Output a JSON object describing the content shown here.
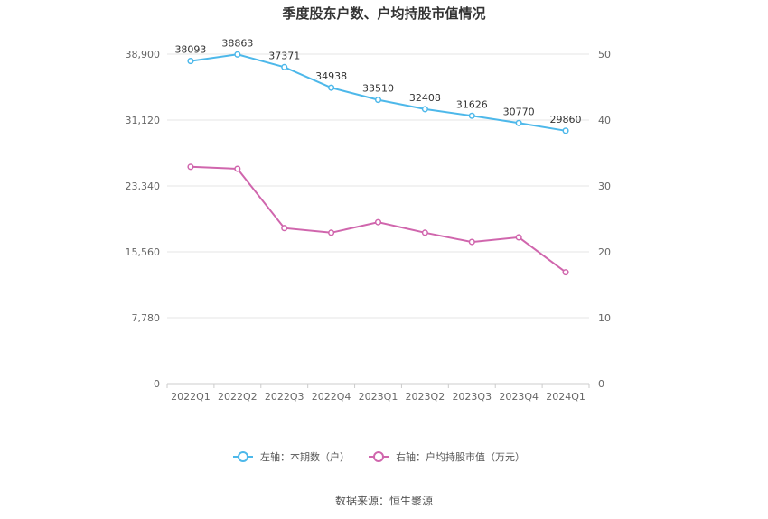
{
  "chart_data": {
    "type": "line",
    "title": "季度股东户数、户均持股市值情况",
    "categories": [
      "2022Q1",
      "2022Q2",
      "2022Q3",
      "2022Q4",
      "2023Q1",
      "2023Q2",
      "2023Q3",
      "2023Q4",
      "2024Q1"
    ],
    "left_axis": {
      "ticks": [
        "0",
        "7,780",
        "15,560",
        "23,340",
        "31,120",
        "38,900"
      ],
      "ylim": [
        0,
        38900
      ]
    },
    "right_axis": {
      "ticks": [
        "0",
        "10",
        "20",
        "30",
        "40",
        "50"
      ],
      "ylim": [
        0,
        50
      ]
    },
    "series": [
      {
        "name": "左轴：本期数（户）",
        "axis": "left",
        "color": "#4db8ea",
        "values": [
          38093,
          38863,
          37371,
          34938,
          33510,
          32408,
          31626,
          30770,
          29860
        ],
        "labels": [
          "38093",
          "38863",
          "37371",
          "34938",
          "33510",
          "32408",
          "31626",
          "30770",
          "29860"
        ]
      },
      {
        "name": "右轴：户均持股市值（万元）",
        "axis": "right",
        "color": "#d066ad",
        "values": [
          32.9,
          32.6,
          23.6,
          22.9,
          24.5,
          22.9,
          21.5,
          22.2,
          16.9
        ]
      }
    ],
    "grid": true,
    "legend": "bottom-center",
    "source": "数据来源：恒生聚源"
  }
}
